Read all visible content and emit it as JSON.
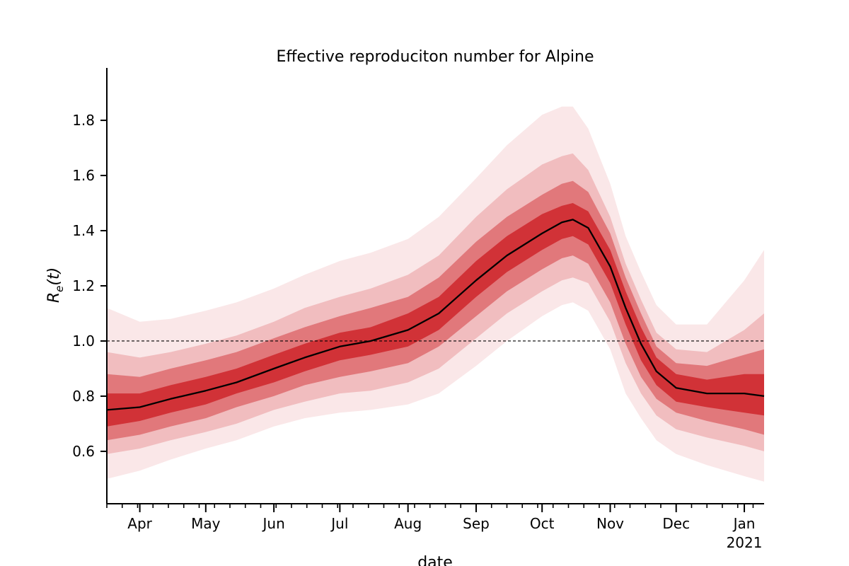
{
  "chart_data": {
    "type": "area",
    "title": "Effective reproduciton number for Alpine",
    "xlabel": "date",
    "ylabel_main": "R",
    "ylabel_sub": "e",
    "ylabel_tail": "(t)",
    "xlim": [
      "2020-03-17",
      "2021-01-10"
    ],
    "ylim": [
      0.41,
      1.99
    ],
    "yticks": [
      0.6,
      0.8,
      1.0,
      1.2,
      1.4,
      1.6,
      1.8
    ],
    "ytick_labels": [
      "0.6",
      "0.8",
      "1.0",
      "1.2",
      "1.4",
      "1.6",
      "1.8"
    ],
    "xticks": [
      {
        "date": "2020-04-01",
        "label": "Apr",
        "sublabel": ""
      },
      {
        "date": "2020-05-01",
        "label": "May",
        "sublabel": ""
      },
      {
        "date": "2020-06-01",
        "label": "Jun",
        "sublabel": ""
      },
      {
        "date": "2020-07-01",
        "label": "Jul",
        "sublabel": ""
      },
      {
        "date": "2020-08-01",
        "label": "Aug",
        "sublabel": ""
      },
      {
        "date": "2020-09-01",
        "label": "Sep",
        "sublabel": ""
      },
      {
        "date": "2020-10-01",
        "label": "Oct",
        "sublabel": ""
      },
      {
        "date": "2020-11-01",
        "label": "Nov",
        "sublabel": ""
      },
      {
        "date": "2020-12-01",
        "label": "Dec",
        "sublabel": ""
      },
      {
        "date": "2021-01-01",
        "label": "Jan",
        "sublabel": "2021"
      }
    ],
    "reference_line": 1.0,
    "line_color": "#000000",
    "band_color": "#cb181d",
    "grid": false,
    "median": {
      "x": [
        "2020-03-17",
        "2020-04-01",
        "2020-04-15",
        "2020-05-01",
        "2020-05-15",
        "2020-06-01",
        "2020-06-15",
        "2020-07-01",
        "2020-07-15",
        "2020-08-01",
        "2020-08-15",
        "2020-09-01",
        "2020-09-15",
        "2020-10-01",
        "2020-10-10",
        "2020-10-15",
        "2020-10-22",
        "2020-11-01",
        "2020-11-08",
        "2020-11-15",
        "2020-11-22",
        "2020-12-01",
        "2020-12-15",
        "2021-01-01",
        "2021-01-10"
      ],
      "y": [
        0.75,
        0.76,
        0.79,
        0.82,
        0.85,
        0.9,
        0.94,
        0.98,
        1.0,
        1.04,
        1.1,
        1.22,
        1.31,
        1.39,
        1.43,
        1.44,
        1.41,
        1.27,
        1.12,
        0.99,
        0.89,
        0.83,
        0.81,
        0.81,
        0.8
      ]
    },
    "bands": [
      {
        "level": "98%",
        "lower": [
          0.5,
          0.53,
          0.57,
          0.61,
          0.64,
          0.69,
          0.72,
          0.74,
          0.75,
          0.77,
          0.81,
          0.91,
          1.0,
          1.09,
          1.13,
          1.14,
          1.11,
          0.97,
          0.81,
          0.72,
          0.64,
          0.59,
          0.55,
          0.51,
          0.49
        ],
        "upper": [
          1.12,
          1.07,
          1.08,
          1.11,
          1.14,
          1.19,
          1.24,
          1.29,
          1.32,
          1.37,
          1.45,
          1.59,
          1.71,
          1.82,
          1.85,
          1.85,
          1.77,
          1.57,
          1.38,
          1.25,
          1.13,
          1.06,
          1.06,
          1.22,
          1.33
        ]
      },
      {
        "level": "90%",
        "lower": [
          0.59,
          0.61,
          0.64,
          0.67,
          0.7,
          0.75,
          0.78,
          0.81,
          0.82,
          0.85,
          0.9,
          1.01,
          1.1,
          1.18,
          1.22,
          1.23,
          1.21,
          1.07,
          0.92,
          0.81,
          0.73,
          0.68,
          0.65,
          0.62,
          0.6
        ],
        "upper": [
          0.96,
          0.94,
          0.96,
          0.99,
          1.02,
          1.07,
          1.12,
          1.16,
          1.19,
          1.24,
          1.31,
          1.45,
          1.55,
          1.64,
          1.67,
          1.68,
          1.62,
          1.45,
          1.28,
          1.15,
          1.03,
          0.97,
          0.96,
          1.04,
          1.1
        ]
      },
      {
        "level": "75%",
        "lower": [
          0.64,
          0.66,
          0.69,
          0.72,
          0.76,
          0.8,
          0.84,
          0.87,
          0.89,
          0.92,
          0.98,
          1.09,
          1.18,
          1.26,
          1.3,
          1.31,
          1.28,
          1.14,
          0.99,
          0.87,
          0.79,
          0.74,
          0.71,
          0.68,
          0.66
        ],
        "upper": [
          0.88,
          0.87,
          0.9,
          0.93,
          0.96,
          1.01,
          1.05,
          1.09,
          1.12,
          1.16,
          1.23,
          1.36,
          1.45,
          1.53,
          1.57,
          1.58,
          1.54,
          1.39,
          1.23,
          1.1,
          0.98,
          0.92,
          0.91,
          0.95,
          0.97
        ]
      },
      {
        "level": "50%",
        "lower": [
          0.69,
          0.71,
          0.74,
          0.77,
          0.81,
          0.85,
          0.89,
          0.93,
          0.95,
          0.98,
          1.04,
          1.16,
          1.25,
          1.33,
          1.37,
          1.38,
          1.35,
          1.21,
          1.06,
          0.93,
          0.84,
          0.78,
          0.76,
          0.74,
          0.73
        ],
        "upper": [
          0.81,
          0.81,
          0.84,
          0.87,
          0.9,
          0.95,
          0.99,
          1.03,
          1.05,
          1.1,
          1.16,
          1.29,
          1.38,
          1.46,
          1.49,
          1.5,
          1.47,
          1.33,
          1.18,
          1.05,
          0.94,
          0.88,
          0.86,
          0.88,
          0.88
        ]
      }
    ]
  }
}
